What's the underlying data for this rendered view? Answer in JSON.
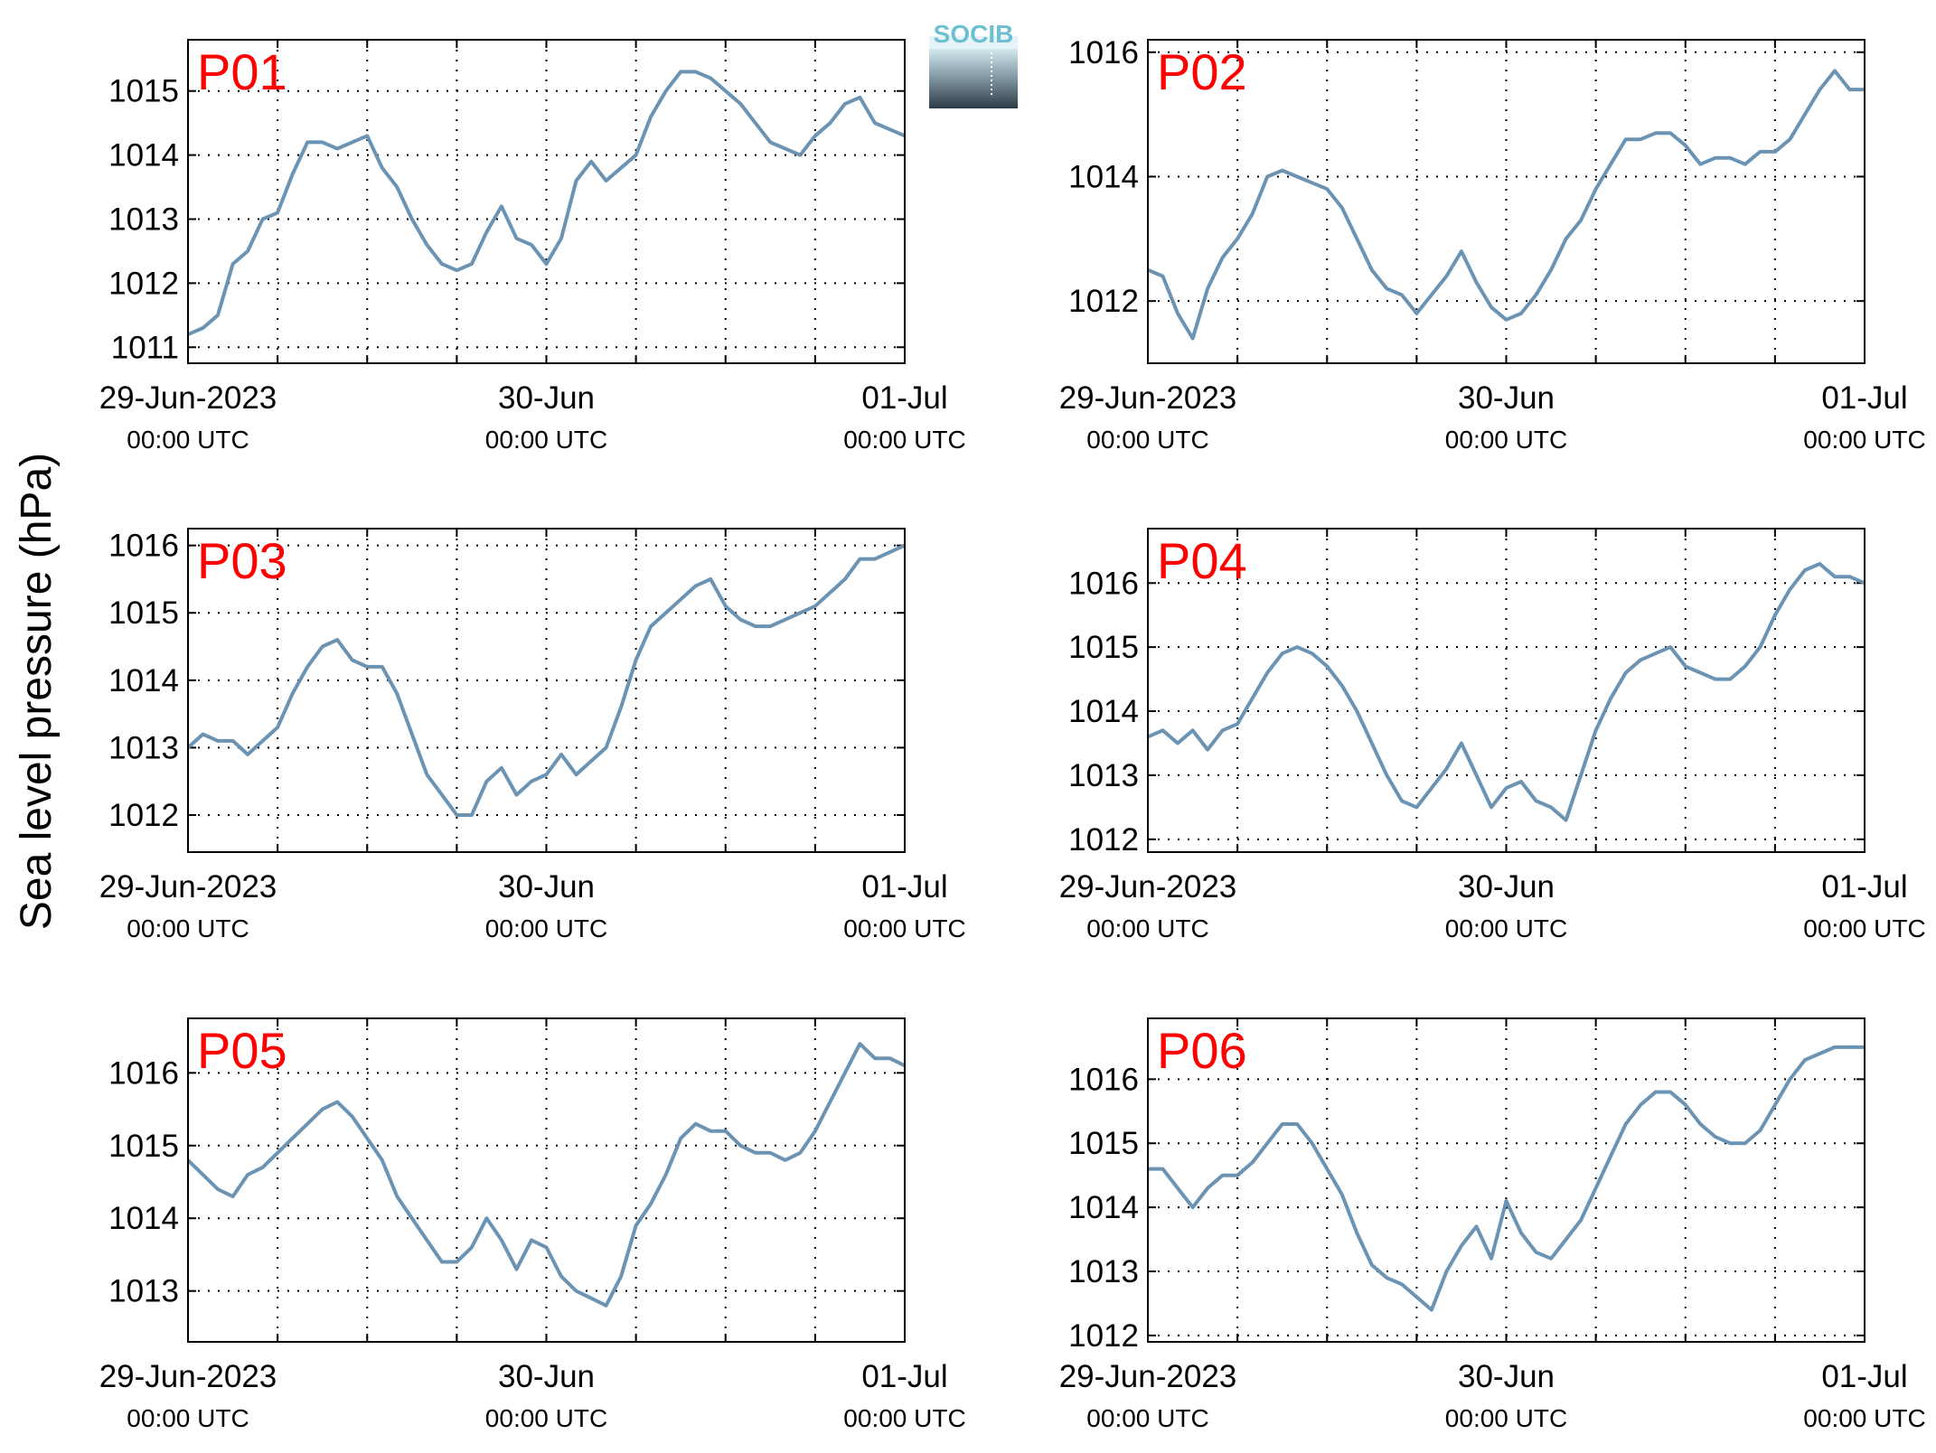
{
  "ylabel": "Sea level pressure (hPa)",
  "logo": {
    "text": "SOCIB"
  },
  "colors": {
    "line": "#6b93b3",
    "panel_label": "#ff0000",
    "grid": "#000000",
    "axes": "#000000"
  },
  "chart_data": [
    {
      "type": "line",
      "panel": "P01",
      "grid": true,
      "xlim": [
        "2023-06-29T00:00",
        "2023-07-01T00:00"
      ],
      "ylim": [
        1010.75,
        1015.8
      ],
      "yticks": [
        1011,
        1012,
        1013,
        1014,
        1015
      ],
      "xticks": [
        {
          "t": "2023-06-29T00:00",
          "label1": "29-Jun-2023",
          "label2": "00:00 UTC"
        },
        {
          "t": "2023-06-30T00:00",
          "label1": "30-Jun",
          "label2": "00:00 UTC"
        },
        {
          "t": "2023-07-01T00:00",
          "label1": "01-Jul",
          "label2": "00:00 UTC"
        }
      ],
      "x_hours": [
        0,
        1,
        2,
        3,
        4,
        5,
        6,
        7,
        8,
        9,
        10,
        11,
        12,
        13,
        14,
        15,
        16,
        17,
        18,
        19,
        20,
        21,
        22,
        23,
        24,
        25,
        26,
        27,
        28,
        29,
        30,
        31,
        32,
        33,
        34,
        35,
        36,
        37,
        38,
        39,
        40,
        41,
        42,
        43,
        44,
        45,
        46,
        47,
        48
      ],
      "series": [
        {
          "values": [
            1011.2,
            1011.3,
            1011.5,
            1012.3,
            1012.5,
            1013.0,
            1013.1,
            1013.7,
            1014.2,
            1014.2,
            1014.1,
            1014.2,
            1014.3,
            1013.8,
            1013.5,
            1013.0,
            1012.6,
            1012.3,
            1012.2,
            1012.3,
            1012.8,
            1013.2,
            1012.7,
            1012.6,
            1012.3,
            1012.7,
            1013.6,
            1013.9,
            1013.6,
            1013.8,
            1014.0,
            1014.6,
            1015.0,
            1015.3,
            1015.3,
            1015.2,
            1015.0,
            1014.8,
            1014.5,
            1014.2,
            1014.1,
            1014.0,
            1014.3,
            1014.5,
            1014.8,
            1014.9,
            1014.5,
            1014.4,
            1014.3
          ]
        }
      ]
    },
    {
      "type": "line",
      "panel": "P02",
      "grid": true,
      "xlim": [
        "2023-06-29T00:00",
        "2023-07-01T00:00"
      ],
      "ylim": [
        1011.0,
        1016.2
      ],
      "yticks": [
        1012,
        1014,
        1016
      ],
      "xticks": [
        {
          "t": "2023-06-29T00:00",
          "label1": "29-Jun-2023",
          "label2": "00:00 UTC"
        },
        {
          "t": "2023-06-30T00:00",
          "label1": "30-Jun",
          "label2": "00:00 UTC"
        },
        {
          "t": "2023-07-01T00:00",
          "label1": "01-Jul",
          "label2": "00:00 UTC"
        }
      ],
      "x_hours": [
        0,
        1,
        2,
        3,
        4,
        5,
        6,
        7,
        8,
        9,
        10,
        11,
        12,
        13,
        14,
        15,
        16,
        17,
        18,
        19,
        20,
        21,
        22,
        23,
        24,
        25,
        26,
        27,
        28,
        29,
        30,
        31,
        32,
        33,
        34,
        35,
        36,
        37,
        38,
        39,
        40,
        41,
        42,
        43,
        44,
        45,
        46,
        47,
        48
      ],
      "series": [
        {
          "values": [
            1012.5,
            1012.4,
            1011.8,
            1011.4,
            1012.2,
            1012.7,
            1013.0,
            1013.4,
            1014.0,
            1014.1,
            1014.0,
            1013.9,
            1013.8,
            1013.5,
            1013.0,
            1012.5,
            1012.2,
            1012.1,
            1011.8,
            1012.1,
            1012.4,
            1012.8,
            1012.3,
            1011.9,
            1011.7,
            1011.8,
            1012.1,
            1012.5,
            1013.0,
            1013.3,
            1013.8,
            1014.2,
            1014.6,
            1014.6,
            1014.7,
            1014.7,
            1014.5,
            1014.2,
            1014.3,
            1014.3,
            1014.2,
            1014.4,
            1014.4,
            1014.6,
            1015.0,
            1015.4,
            1015.7,
            1015.4,
            1015.4
          ]
        }
      ]
    },
    {
      "type": "line",
      "panel": "P03",
      "grid": true,
      "xlim": [
        "2023-06-29T00:00",
        "2023-07-01T00:00"
      ],
      "ylim": [
        1011.45,
        1016.25
      ],
      "yticks": [
        1012,
        1013,
        1014,
        1015,
        1016
      ],
      "xticks": [
        {
          "t": "2023-06-29T00:00",
          "label1": "29-Jun-2023",
          "label2": "00:00 UTC"
        },
        {
          "t": "2023-06-30T00:00",
          "label1": "30-Jun",
          "label2": "00:00 UTC"
        },
        {
          "t": "2023-07-01T00:00",
          "label1": "01-Jul",
          "label2": "00:00 UTC"
        }
      ],
      "x_hours": [
        0,
        1,
        2,
        3,
        4,
        5,
        6,
        7,
        8,
        9,
        10,
        11,
        12,
        13,
        14,
        15,
        16,
        17,
        18,
        19,
        20,
        21,
        22,
        23,
        24,
        25,
        26,
        27,
        28,
        29,
        30,
        31,
        32,
        33,
        34,
        35,
        36,
        37,
        38,
        39,
        40,
        41,
        42,
        43,
        44,
        45,
        46,
        47,
        48
      ],
      "series": [
        {
          "values": [
            1013.0,
            1013.2,
            1013.1,
            1013.1,
            1012.9,
            1013.1,
            1013.3,
            1013.8,
            1014.2,
            1014.5,
            1014.6,
            1014.3,
            1014.2,
            1014.2,
            1013.8,
            1013.2,
            1012.6,
            1012.3,
            1012.0,
            1012.0,
            1012.5,
            1012.7,
            1012.3,
            1012.5,
            1012.6,
            1012.9,
            1012.6,
            1012.8,
            1013.0,
            1013.6,
            1014.3,
            1014.8,
            1015.0,
            1015.2,
            1015.4,
            1015.5,
            1015.1,
            1014.9,
            1014.8,
            1014.8,
            1014.9,
            1015.0,
            1015.1,
            1015.3,
            1015.5,
            1015.8,
            1015.8,
            1015.9,
            1016.0
          ]
        }
      ]
    },
    {
      "type": "line",
      "panel": "P04",
      "grid": true,
      "xlim": [
        "2023-06-29T00:00",
        "2023-07-01T00:00"
      ],
      "ylim": [
        1011.8,
        1016.85
      ],
      "yticks": [
        1012,
        1013,
        1014,
        1015,
        1016
      ],
      "xticks": [
        {
          "t": "2023-06-29T00:00",
          "label1": "29-Jun-2023",
          "label2": "00:00 UTC"
        },
        {
          "t": "2023-06-30T00:00",
          "label1": "30-Jun",
          "label2": "00:00 UTC"
        },
        {
          "t": "2023-07-01T00:00",
          "label1": "01-Jul",
          "label2": "00:00 UTC"
        }
      ],
      "x_hours": [
        0,
        1,
        2,
        3,
        4,
        5,
        6,
        7,
        8,
        9,
        10,
        11,
        12,
        13,
        14,
        15,
        16,
        17,
        18,
        19,
        20,
        21,
        22,
        23,
        24,
        25,
        26,
        27,
        28,
        29,
        30,
        31,
        32,
        33,
        34,
        35,
        36,
        37,
        38,
        39,
        40,
        41,
        42,
        43,
        44,
        45,
        46,
        47,
        48
      ],
      "series": [
        {
          "values": [
            1013.6,
            1013.7,
            1013.5,
            1013.7,
            1013.4,
            1013.7,
            1013.8,
            1014.2,
            1014.6,
            1014.9,
            1015.0,
            1014.9,
            1014.7,
            1014.4,
            1014.0,
            1013.5,
            1013.0,
            1012.6,
            1012.5,
            1012.8,
            1013.1,
            1013.5,
            1013.0,
            1012.5,
            1012.8,
            1012.9,
            1012.6,
            1012.5,
            1012.3,
            1013.0,
            1013.7,
            1014.2,
            1014.6,
            1014.8,
            1014.9,
            1015.0,
            1014.7,
            1014.6,
            1014.5,
            1014.5,
            1014.7,
            1015.0,
            1015.5,
            1015.9,
            1016.2,
            1016.3,
            1016.1,
            1016.1,
            1016.0
          ]
        }
      ]
    },
    {
      "type": "line",
      "panel": "P05",
      "grid": true,
      "xlim": [
        "2023-06-29T00:00",
        "2023-07-01T00:00"
      ],
      "ylim": [
        1012.3,
        1016.75
      ],
      "yticks": [
        1013,
        1014,
        1015,
        1016
      ],
      "xticks": [
        {
          "t": "2023-06-29T00:00",
          "label1": "29-Jun-2023",
          "label2": "00:00 UTC"
        },
        {
          "t": "2023-06-30T00:00",
          "label1": "30-Jun",
          "label2": "00:00 UTC"
        },
        {
          "t": "2023-07-01T00:00",
          "label1": "01-Jul",
          "label2": "00:00 UTC"
        }
      ],
      "x_hours": [
        0,
        1,
        2,
        3,
        4,
        5,
        6,
        7,
        8,
        9,
        10,
        11,
        12,
        13,
        14,
        15,
        16,
        17,
        18,
        19,
        20,
        21,
        22,
        23,
        24,
        25,
        26,
        27,
        28,
        29,
        30,
        31,
        32,
        33,
        34,
        35,
        36,
        37,
        38,
        39,
        40,
        41,
        42,
        43,
        44,
        45,
        46,
        47,
        48
      ],
      "series": [
        {
          "values": [
            1014.8,
            1014.6,
            1014.4,
            1014.3,
            1014.6,
            1014.7,
            1014.9,
            1015.1,
            1015.3,
            1015.5,
            1015.6,
            1015.4,
            1015.1,
            1014.8,
            1014.3,
            1014.0,
            1013.7,
            1013.4,
            1013.4,
            1013.6,
            1014.0,
            1013.7,
            1013.3,
            1013.7,
            1013.6,
            1013.2,
            1013.0,
            1012.9,
            1012.8,
            1013.2,
            1013.9,
            1014.2,
            1014.6,
            1015.1,
            1015.3,
            1015.2,
            1015.2,
            1015.0,
            1014.9,
            1014.9,
            1014.8,
            1014.9,
            1015.2,
            1015.6,
            1016.0,
            1016.4,
            1016.2,
            1016.2,
            1016.1
          ]
        }
      ]
    },
    {
      "type": "line",
      "panel": "P06",
      "grid": true,
      "xlim": [
        "2023-06-29T00:00",
        "2023-07-01T00:00"
      ],
      "ylim": [
        1011.9,
        1016.95
      ],
      "yticks": [
        1012,
        1013,
        1014,
        1015,
        1016
      ],
      "xticks": [
        {
          "t": "2023-06-29T00:00",
          "label1": "29-Jun-2023",
          "label2": "00:00 UTC"
        },
        {
          "t": "2023-06-30T00:00",
          "label1": "30-Jun",
          "label2": "00:00 UTC"
        },
        {
          "t": "2023-07-01T00:00",
          "label1": "01-Jul",
          "label2": "00:00 UTC"
        }
      ],
      "x_hours": [
        0,
        1,
        2,
        3,
        4,
        5,
        6,
        7,
        8,
        9,
        10,
        11,
        12,
        13,
        14,
        15,
        16,
        17,
        18,
        19,
        20,
        21,
        22,
        23,
        24,
        25,
        26,
        27,
        28,
        29,
        30,
        31,
        32,
        33,
        34,
        35,
        36,
        37,
        38,
        39,
        40,
        41,
        42,
        43,
        44,
        45,
        46,
        47,
        48
      ],
      "series": [
        {
          "values": [
            1014.6,
            1014.6,
            1014.3,
            1014.0,
            1014.3,
            1014.5,
            1014.5,
            1014.7,
            1015.0,
            1015.3,
            1015.3,
            1015.0,
            1014.6,
            1014.2,
            1013.6,
            1013.1,
            1012.9,
            1012.8,
            1012.6,
            1012.4,
            1013.0,
            1013.4,
            1013.7,
            1013.2,
            1014.1,
            1013.6,
            1013.3,
            1013.2,
            1013.5,
            1013.8,
            1014.3,
            1014.8,
            1015.3,
            1015.6,
            1015.8,
            1015.8,
            1015.6,
            1015.3,
            1015.1,
            1015.0,
            1015.0,
            1015.2,
            1015.6,
            1016.0,
            1016.3,
            1016.4,
            1016.5,
            1016.5,
            1016.5
          ]
        }
      ]
    }
  ]
}
